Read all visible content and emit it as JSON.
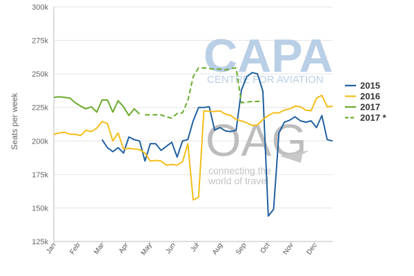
{
  "watermarks": {
    "capa": "CAPA",
    "capa_sub": "CENTRE FOR AVIATION",
    "oag": "OAG",
    "oag_line1": "connecting the",
    "oag_line2": "world of travel"
  },
  "chart_data": {
    "type": "line",
    "ylabel": "Seats per week",
    "xlabel": "",
    "ylim": [
      125000,
      300000
    ],
    "yticks": [
      125000,
      150000,
      175000,
      200000,
      225000,
      250000,
      275000,
      300000
    ],
    "ytick_labels": [
      "125k",
      "150k",
      "175k",
      "200k",
      "225k",
      "250k",
      "275k",
      "300k"
    ],
    "x_unit": "week of year",
    "xlim": [
      1,
      53
    ],
    "x_tick_positions": [
      1,
      5.5,
      10,
      14.5,
      18.9,
      23.3,
      27.7,
      32.1,
      36.5,
      40.9,
      45.3,
      49.7
    ],
    "x_tick_labels": [
      "Jan",
      "Feb",
      "Mar",
      "Apr",
      "May",
      "Jun",
      "Jul",
      "Aug",
      "Sep",
      "Oct",
      "Nov",
      "Dec"
    ],
    "grid": "horizontal",
    "legend_position": "right",
    "series": [
      {
        "name": "2015",
        "color": "#1f5fa0",
        "dash": "solid",
        "x": [
          10,
          11,
          12,
          13,
          14,
          15,
          16,
          17,
          18,
          19,
          20,
          21,
          22,
          23,
          24,
          25,
          26,
          27,
          28,
          29,
          30,
          31,
          32,
          33,
          34,
          35,
          36,
          37,
          38,
          39,
          40,
          41,
          42,
          43,
          44,
          45,
          46,
          47,
          48,
          49,
          50,
          51,
          52,
          53
        ],
        "y": [
          201000,
          195000,
          192000,
          195000,
          191000,
          203000,
          201000,
          200000,
          185000,
          198000,
          198000,
          193000,
          196000,
          199000,
          188000,
          200000,
          201000,
          215000,
          225000,
          225000,
          225500,
          208000,
          210000,
          207500,
          207000,
          208000,
          238000,
          248000,
          251000,
          250000,
          237000,
          144000,
          149000,
          206000,
          214000,
          215500,
          218000,
          215000,
          214000,
          215000,
          210000,
          219000,
          201000,
          200000
        ]
      },
      {
        "name": "2016",
        "color": "#f5bd18",
        "dash": "solid",
        "x": [
          1,
          2,
          3,
          4,
          5,
          6,
          7,
          8,
          9,
          10,
          11,
          12,
          13,
          14,
          15,
          16,
          17,
          18,
          19,
          20,
          21,
          22,
          23,
          24,
          25,
          26,
          27,
          28,
          29,
          30,
          31,
          32,
          33,
          34,
          35,
          36,
          37,
          38,
          39,
          40,
          41,
          42,
          43,
          44,
          45,
          46,
          47,
          48,
          49,
          50,
          51,
          52,
          53
        ],
        "y": [
          205000,
          206000,
          206500,
          205000,
          205000,
          204000,
          208000,
          207000,
          209500,
          214500,
          213000,
          200000,
          206000,
          194000,
          194500,
          194000,
          193500,
          191000,
          185000,
          185500,
          185000,
          182000,
          182500,
          182000,
          184500,
          198000,
          156000,
          158000,
          222500,
          222000,
          222000,
          222500,
          220000,
          219000,
          216000,
          215000,
          213500,
          211500,
          212000,
          216000,
          219000,
          221000,
          221000,
          223000,
          224000,
          226000,
          225500,
          223000,
          222500,
          232000,
          234000,
          225500,
          226000
        ]
      },
      {
        "name": "2017",
        "color": "#6aaa2a",
        "dash": "solid",
        "x": [
          1,
          2,
          3,
          4,
          5,
          6,
          7,
          8,
          9,
          10,
          11,
          12,
          13,
          14,
          15,
          16,
          17
        ],
        "y": [
          232500,
          233000,
          232500,
          232000,
          228500,
          226000,
          224000,
          225500,
          221500,
          230500,
          230500,
          221500,
          230000,
          225500,
          219000,
          224000,
          220000
        ]
      },
      {
        "name": "2017 *",
        "color": "#6aaa2a",
        "dash": "dashed",
        "x": [
          18,
          19,
          20,
          21,
          22,
          23,
          24,
          25,
          26,
          27,
          28,
          29,
          30,
          31,
          32,
          33,
          34,
          35,
          36,
          37,
          38,
          39,
          40
        ],
        "y": [
          219500,
          219500,
          219500,
          219500,
          218000,
          217000,
          220500,
          221000,
          230000,
          248000,
          254500,
          254500,
          254000,
          253500,
          253500,
          253000,
          254000,
          254500,
          228500,
          229000,
          229500,
          229500,
          230000
        ]
      }
    ]
  }
}
